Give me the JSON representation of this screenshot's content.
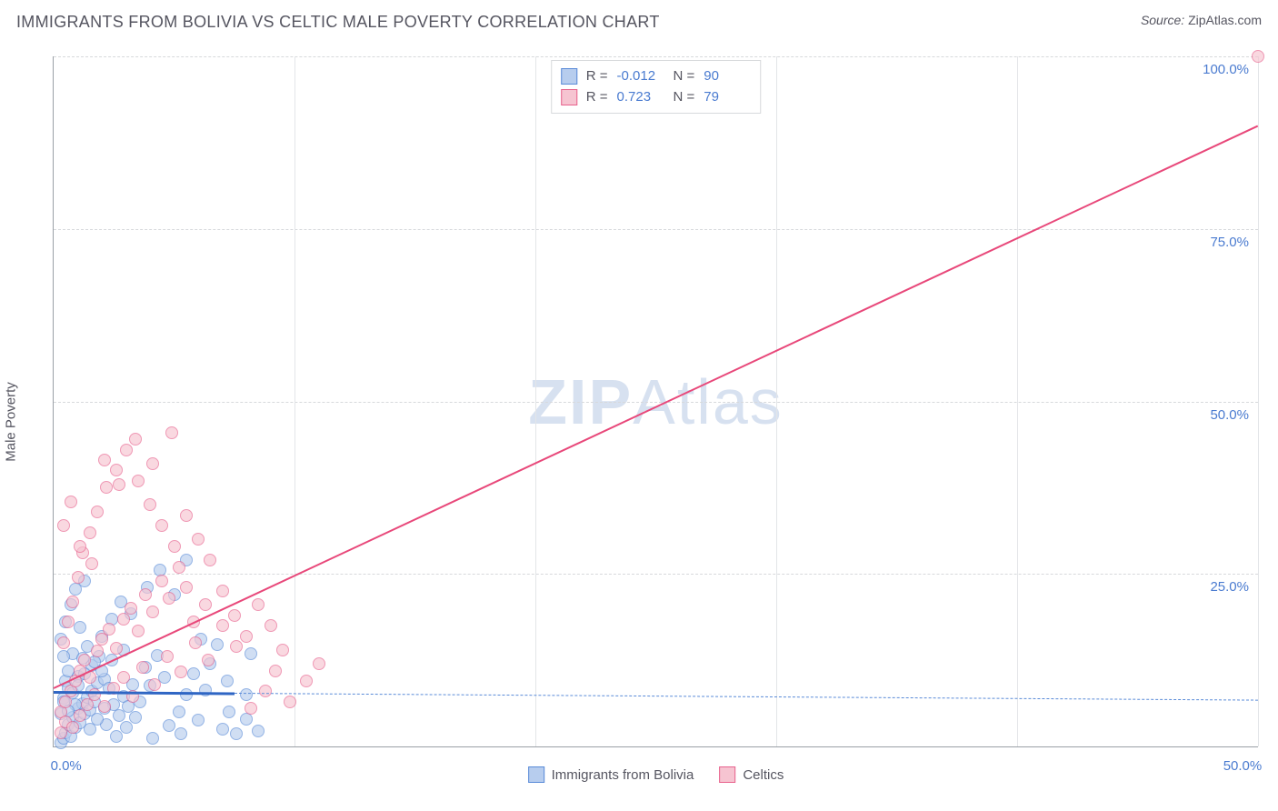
{
  "header": {
    "title": "IMMIGRANTS FROM BOLIVIA VS CELTIC MALE POVERTY CORRELATION CHART",
    "source_label": "Source:",
    "source_value": "ZipAtlas.com"
  },
  "chart": {
    "type": "scatter",
    "ylabel": "Male Poverty",
    "watermark": "ZIPAtlas",
    "background_color": "#ffffff",
    "grid_color": "#d7d9dc",
    "axis_color": "#9aa0a6",
    "tick_color": "#4a7bd0",
    "xlim": [
      0,
      50
    ],
    "ylim": [
      0,
      100
    ],
    "xticks": [
      0,
      50
    ],
    "xtick_labels": [
      "0.0%",
      "50.0%"
    ],
    "yticks": [
      25,
      50,
      75,
      100
    ],
    "ytick_labels": [
      "25.0%",
      "50.0%",
      "75.0%",
      "100.0%"
    ],
    "vgrid": [
      10,
      20,
      30,
      40,
      50
    ],
    "series": [
      {
        "name": "Immigrants from Bolivia",
        "color_fill": "#b7cdee",
        "color_stroke": "#5a8bd8",
        "marker_radius": 7,
        "fill_opacity": 0.65,
        "R": "-0.012",
        "N": "90",
        "trend": {
          "x1": 0,
          "y1": 8.0,
          "x2": 7.5,
          "y2": 7.8,
          "color": "#2f66c4",
          "width": 2.5
        },
        "trend_ext": {
          "x1": 7.5,
          "y1": 7.8,
          "x2": 50,
          "y2": 6.8,
          "color": "#5a8bd8",
          "dashed": true
        },
        "points": [
          [
            0.3,
            0.5
          ],
          [
            0.4,
            1.2
          ],
          [
            0.5,
            2.0
          ],
          [
            0.6,
            3.1
          ],
          [
            0.7,
            1.5
          ],
          [
            0.8,
            4.2
          ],
          [
            0.9,
            2.8
          ],
          [
            1.0,
            5.5
          ],
          [
            1.1,
            3.4
          ],
          [
            1.2,
            6.2
          ],
          [
            1.3,
            4.8
          ],
          [
            1.4,
            7.1
          ],
          [
            1.5,
            5.3
          ],
          [
            1.6,
            8.0
          ],
          [
            1.7,
            6.4
          ],
          [
            1.8,
            9.2
          ],
          [
            0.4,
            7.0
          ],
          [
            0.5,
            9.5
          ],
          [
            0.6,
            11.0
          ],
          [
            0.8,
            13.5
          ],
          [
            1.0,
            10.2
          ],
          [
            1.2,
            12.8
          ],
          [
            1.4,
            14.5
          ],
          [
            1.6,
            11.7
          ],
          [
            1.9,
            13.0
          ],
          [
            2.1,
            9.8
          ],
          [
            2.3,
            8.4
          ],
          [
            2.5,
            6.0
          ],
          [
            2.7,
            4.5
          ],
          [
            2.9,
            7.2
          ],
          [
            3.1,
            5.8
          ],
          [
            3.3,
            9.0
          ],
          [
            3.6,
            6.5
          ],
          [
            3.8,
            11.5
          ],
          [
            4.0,
            8.8
          ],
          [
            4.3,
            13.2
          ],
          [
            4.6,
            10.0
          ],
          [
            2.0,
            16.0
          ],
          [
            2.4,
            18.5
          ],
          [
            2.8,
            21.0
          ],
          [
            3.2,
            19.2
          ],
          [
            3.9,
            23.0
          ],
          [
            4.4,
            25.5
          ],
          [
            5.0,
            22.0
          ],
          [
            5.2,
            5.0
          ],
          [
            5.5,
            7.5
          ],
          [
            5.8,
            10.5
          ],
          [
            6.0,
            3.8
          ],
          [
            6.3,
            8.2
          ],
          [
            6.5,
            12.0
          ],
          [
            6.8,
            14.8
          ],
          [
            5.5,
            27.0
          ],
          [
            0.3,
            15.5
          ],
          [
            0.5,
            18.0
          ],
          [
            0.7,
            20.5
          ],
          [
            0.9,
            22.8
          ],
          [
            1.1,
            17.2
          ],
          [
            7.0,
            2.5
          ],
          [
            7.3,
            5.0
          ],
          [
            7.6,
            1.8
          ],
          [
            8.0,
            4.0
          ],
          [
            8.5,
            2.2
          ],
          [
            1.3,
            24.0
          ],
          [
            0.4,
            13.0
          ],
          [
            0.6,
            8.5
          ],
          [
            0.9,
            6.0
          ],
          [
            2.2,
            3.2
          ],
          [
            2.6,
            1.5
          ],
          [
            3.0,
            2.8
          ],
          [
            3.4,
            4.2
          ],
          [
            4.1,
            1.2
          ],
          [
            4.8,
            3.0
          ],
          [
            5.3,
            1.8
          ],
          [
            6.1,
            15.5
          ],
          [
            7.2,
            9.5
          ],
          [
            8.2,
            13.5
          ],
          [
            8.0,
            7.5
          ],
          [
            1.5,
            2.5
          ],
          [
            1.8,
            4.0
          ],
          [
            2.1,
            5.5
          ],
          [
            0.3,
            4.8
          ],
          [
            0.4,
            6.5
          ],
          [
            0.6,
            5.2
          ],
          [
            0.8,
            7.8
          ],
          [
            1.0,
            8.8
          ],
          [
            1.3,
            10.5
          ],
          [
            1.7,
            12.2
          ],
          [
            2.0,
            11.0
          ],
          [
            2.4,
            12.5
          ],
          [
            2.9,
            14.0
          ]
        ]
      },
      {
        "name": "Celtics",
        "color_fill": "#f6c4d1",
        "color_stroke": "#e8628d",
        "marker_radius": 7,
        "fill_opacity": 0.65,
        "R": "0.723",
        "N": "79",
        "trend": {
          "x1": 0,
          "y1": 8.5,
          "x2": 50,
          "y2": 90,
          "color": "#e8487a",
          "width": 2
        },
        "points": [
          [
            0.3,
            5.0
          ],
          [
            0.5,
            6.5
          ],
          [
            0.7,
            8.0
          ],
          [
            0.9,
            9.5
          ],
          [
            1.1,
            11.0
          ],
          [
            1.3,
            12.5
          ],
          [
            1.5,
            10.0
          ],
          [
            1.8,
            13.8
          ],
          [
            2.0,
            15.5
          ],
          [
            2.3,
            17.0
          ],
          [
            2.6,
            14.2
          ],
          [
            2.9,
            18.5
          ],
          [
            3.2,
            20.0
          ],
          [
            3.5,
            16.8
          ],
          [
            3.8,
            22.0
          ],
          [
            4.1,
            19.5
          ],
          [
            4.5,
            24.0
          ],
          [
            4.8,
            21.5
          ],
          [
            5.2,
            26.0
          ],
          [
            5.5,
            23.0
          ],
          [
            0.4,
            15.0
          ],
          [
            0.6,
            18.0
          ],
          [
            0.8,
            21.0
          ],
          [
            1.0,
            24.5
          ],
          [
            1.2,
            28.0
          ],
          [
            1.5,
            31.0
          ],
          [
            1.8,
            34.0
          ],
          [
            2.2,
            37.5
          ],
          [
            2.6,
            40.0
          ],
          [
            3.0,
            43.0
          ],
          [
            3.5,
            38.5
          ],
          [
            4.0,
            35.0
          ],
          [
            4.5,
            32.0
          ],
          [
            5.0,
            29.0
          ],
          [
            5.5,
            33.5
          ],
          [
            6.0,
            30.0
          ],
          [
            6.5,
            27.0
          ],
          [
            7.0,
            22.5
          ],
          [
            7.5,
            19.0
          ],
          [
            8.0,
            16.0
          ],
          [
            8.5,
            20.5
          ],
          [
            9.0,
            17.5
          ],
          [
            9.5,
            14.0
          ],
          [
            0.3,
            2.0
          ],
          [
            0.5,
            3.5
          ],
          [
            0.8,
            2.8
          ],
          [
            1.1,
            4.5
          ],
          [
            1.4,
            6.0
          ],
          [
            1.7,
            7.5
          ],
          [
            2.1,
            5.8
          ],
          [
            2.5,
            8.5
          ],
          [
            2.9,
            10.0
          ],
          [
            3.3,
            7.2
          ],
          [
            3.7,
            11.5
          ],
          [
            4.2,
            9.0
          ],
          [
            4.7,
            13.0
          ],
          [
            5.3,
            10.8
          ],
          [
            5.9,
            15.0
          ],
          [
            6.4,
            12.5
          ],
          [
            7.0,
            17.5
          ],
          [
            7.6,
            14.5
          ],
          [
            0.4,
            32.0
          ],
          [
            0.7,
            35.5
          ],
          [
            1.1,
            29.0
          ],
          [
            1.6,
            26.5
          ],
          [
            2.1,
            41.5
          ],
          [
            2.7,
            38.0
          ],
          [
            3.4,
            44.5
          ],
          [
            4.1,
            41.0
          ],
          [
            4.9,
            45.5
          ],
          [
            8.2,
            5.5
          ],
          [
            8.8,
            8.0
          ],
          [
            9.2,
            11.0
          ],
          [
            9.8,
            6.5
          ],
          [
            10.5,
            9.5
          ],
          [
            11.0,
            12.0
          ],
          [
            50.0,
            100.0
          ],
          [
            5.8,
            18.0
          ],
          [
            6.3,
            20.5
          ]
        ]
      }
    ],
    "bottom_legend": [
      {
        "label": "Immigrants from Bolivia",
        "fill": "#b7cdee",
        "stroke": "#5a8bd8"
      },
      {
        "label": "Celtics",
        "fill": "#f6c4d1",
        "stroke": "#e8628d"
      }
    ]
  }
}
